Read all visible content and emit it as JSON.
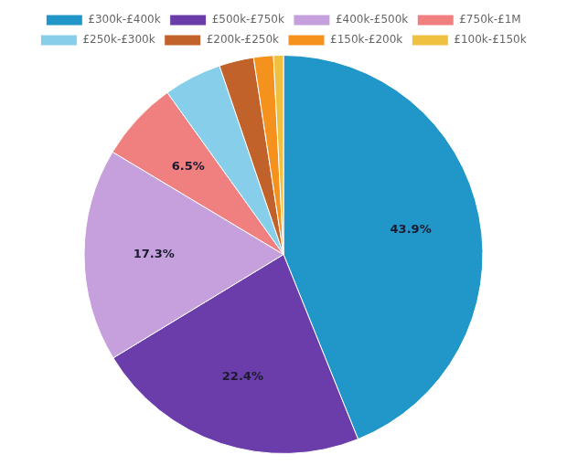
{
  "chart_data": {
    "type": "pie",
    "categories": [
      "£300k-£400k",
      "£500k-£750k",
      "£400k-£500k",
      "£750k-£1M",
      "£250k-£300k",
      "£200k-£250k",
      "£150k-£200k",
      "£100k-£150k"
    ],
    "values": [
      43.9,
      22.4,
      17.3,
      6.5,
      4.7,
      2.8,
      1.6,
      0.8
    ],
    "value_labels": [
      "43.9%",
      "22.4%",
      "17.3%",
      "6.5%",
      null,
      null,
      null,
      null
    ],
    "colors": [
      "#2196C8",
      "#6B3DAB",
      "#C5A0DC",
      "#F08080",
      "#87CEEB",
      "#C0622A",
      "#F5921E",
      "#F0C040"
    ],
    "data_labels": true,
    "legend": "top"
  }
}
